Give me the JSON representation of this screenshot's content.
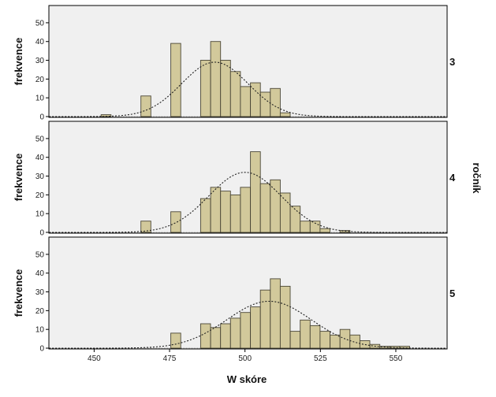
{
  "chart_data": {
    "type": "bar",
    "xlabel": "W skóre",
    "ylabel": "frekvence",
    "facet_label": "ročník",
    "xlim": [
      435,
      567
    ],
    "ylim": [
      0,
      55
    ],
    "x_ticks": [
      450,
      475,
      500,
      525,
      550
    ],
    "y_ticks": [
      0,
      10,
      20,
      30,
      40,
      50
    ],
    "bin_width": 3.3,
    "colors": {
      "bar_fill": "#d2c99b",
      "bar_stroke": "#4a4636",
      "panel_bg": "#f0f0f0",
      "normal_curve": "#222222"
    },
    "panels": [
      {
        "label": "3",
        "bins": [
          {
            "x": 452.3,
            "count": 1
          },
          {
            "x": 465.5,
            "count": 11
          },
          {
            "x": 475.4,
            "count": 39
          },
          {
            "x": 485.3,
            "count": 30
          },
          {
            "x": 488.6,
            "count": 40
          },
          {
            "x": 491.9,
            "count": 30
          },
          {
            "x": 495.2,
            "count": 24
          },
          {
            "x": 498.5,
            "count": 16
          },
          {
            "x": 501.8,
            "count": 18
          },
          {
            "x": 505.1,
            "count": 13
          },
          {
            "x": 508.4,
            "count": 15
          },
          {
            "x": 511.7,
            "count": 2
          }
        ],
        "normal_curve": {
          "mean": 490,
          "peak": 29,
          "sd": 11
        }
      },
      {
        "label": "4",
        "bins": [
          {
            "x": 465.5,
            "count": 6
          },
          {
            "x": 475.4,
            "count": 11
          },
          {
            "x": 485.3,
            "count": 18
          },
          {
            "x": 488.6,
            "count": 24
          },
          {
            "x": 491.9,
            "count": 22
          },
          {
            "x": 495.2,
            "count": 20
          },
          {
            "x": 498.5,
            "count": 24
          },
          {
            "x": 501.8,
            "count": 43
          },
          {
            "x": 505.1,
            "count": 26
          },
          {
            "x": 508.4,
            "count": 28
          },
          {
            "x": 511.7,
            "count": 21
          },
          {
            "x": 515.0,
            "count": 14
          },
          {
            "x": 518.3,
            "count": 6
          },
          {
            "x": 521.6,
            "count": 6
          },
          {
            "x": 524.9,
            "count": 2
          },
          {
            "x": 531.5,
            "count": 1
          }
        ],
        "normal_curve": {
          "mean": 500,
          "peak": 32,
          "sd": 12
        }
      },
      {
        "label": "5",
        "bins": [
          {
            "x": 475.4,
            "count": 8
          },
          {
            "x": 485.3,
            "count": 13
          },
          {
            "x": 488.6,
            "count": 11
          },
          {
            "x": 491.9,
            "count": 13
          },
          {
            "x": 495.2,
            "count": 16
          },
          {
            "x": 498.5,
            "count": 19
          },
          {
            "x": 501.8,
            "count": 22
          },
          {
            "x": 505.1,
            "count": 31
          },
          {
            "x": 508.4,
            "count": 37
          },
          {
            "x": 511.7,
            "count": 33
          },
          {
            "x": 515.0,
            "count": 9
          },
          {
            "x": 518.3,
            "count": 15
          },
          {
            "x": 521.6,
            "count": 12
          },
          {
            "x": 524.9,
            "count": 9
          },
          {
            "x": 528.2,
            "count": 7
          },
          {
            "x": 531.5,
            "count": 10
          },
          {
            "x": 534.8,
            "count": 7
          },
          {
            "x": 538.1,
            "count": 4
          },
          {
            "x": 541.4,
            "count": 2
          },
          {
            "x": 544.7,
            "count": 1
          },
          {
            "x": 548.0,
            "count": 1
          },
          {
            "x": 551.3,
            "count": 1
          }
        ],
        "normal_curve": {
          "mean": 508,
          "peak": 25,
          "sd": 14
        }
      }
    ]
  }
}
